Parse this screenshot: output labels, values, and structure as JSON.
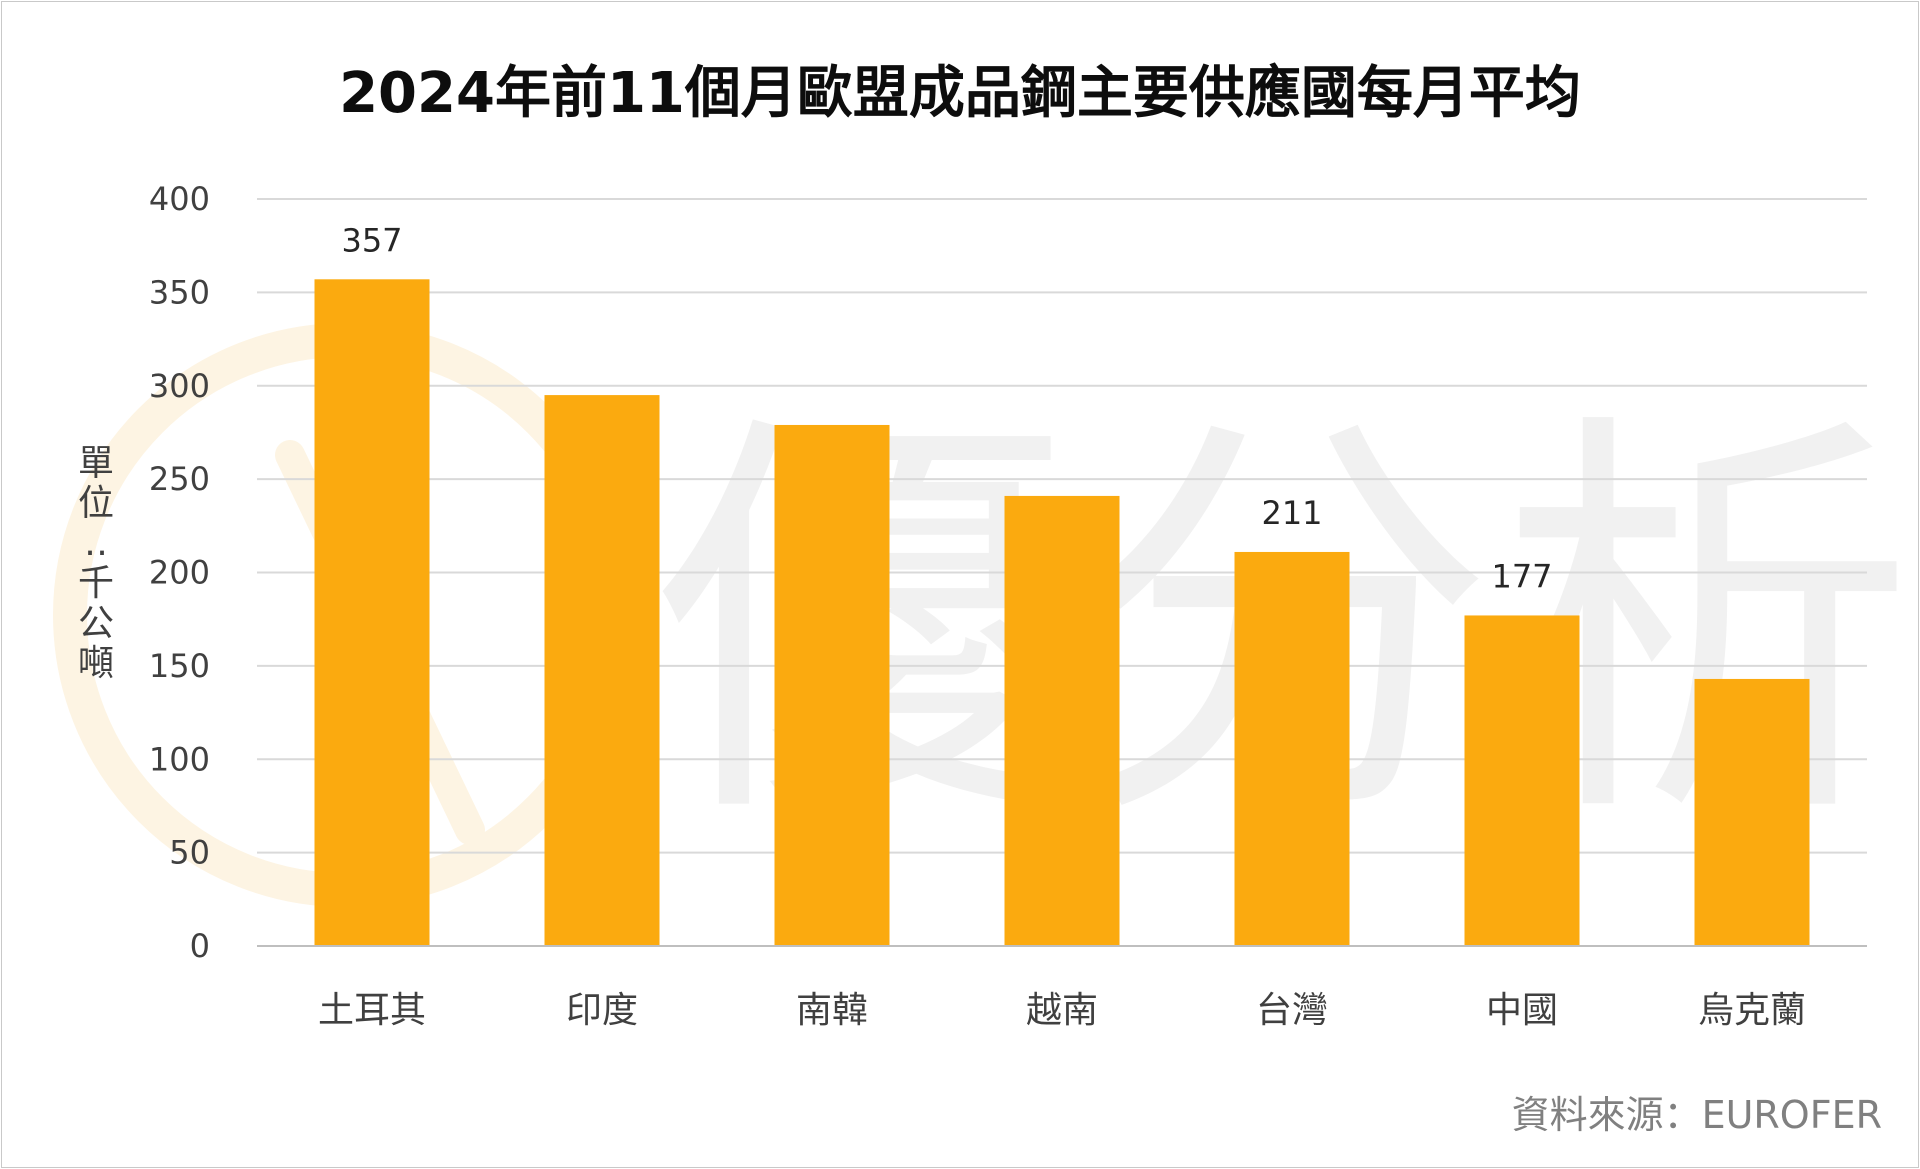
{
  "chart_data": {
    "type": "bar",
    "title": "2024年前11個月歐盟成品鋼主要供應國每月平均",
    "ylabel": "單位：千公噸",
    "ylim": [
      0,
      400
    ],
    "yticks": [
      0,
      50,
      100,
      150,
      200,
      250,
      300,
      350,
      400
    ],
    "categories": [
      "土耳其",
      "印度",
      "南韓",
      "越南",
      "台灣",
      "中國",
      "烏克蘭"
    ],
    "values": [
      357,
      295,
      279,
      241,
      211,
      177,
      143
    ],
    "data_labels": [
      "357",
      "",
      "",
      "",
      "211",
      "177",
      ""
    ],
    "bar_color": "#FBAA0F",
    "grid": true,
    "legend": "none",
    "source": "資料來源：EUROFER"
  },
  "watermark": {
    "text": "優分析",
    "ring_color": "#FDF4E3",
    "text_color": "#F1F1F1"
  }
}
